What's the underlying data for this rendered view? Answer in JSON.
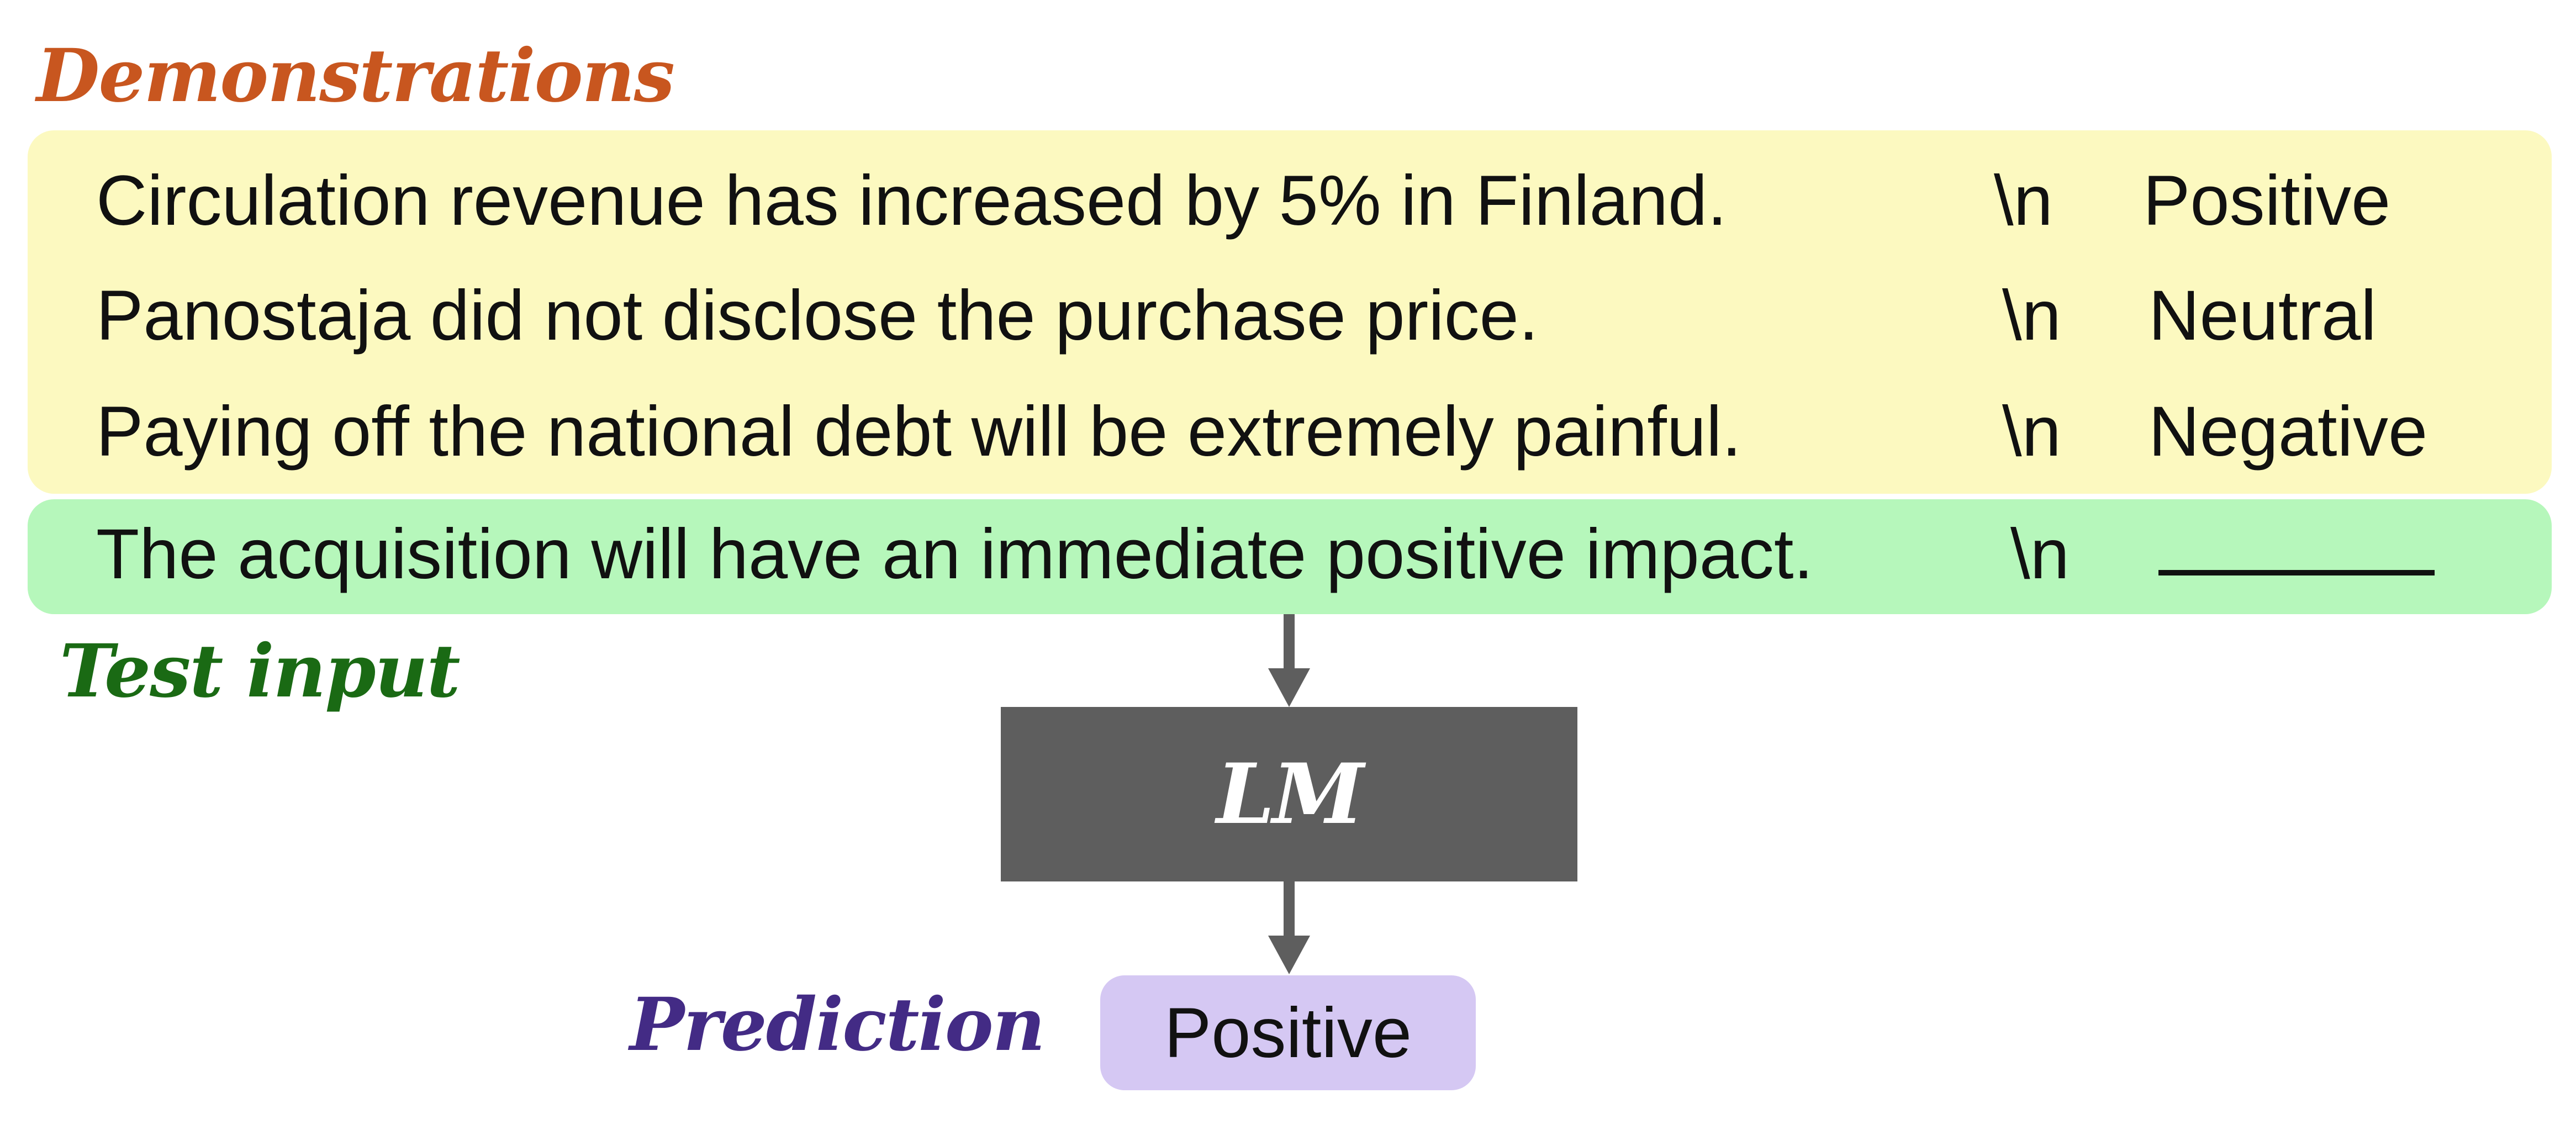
{
  "colors": {
    "demonstrations_heading": "#c8561f",
    "demonstrations_panel": "#fcf9c0",
    "test_heading": "#1a6a14",
    "test_panel": "#b6f7bb",
    "prediction_heading": "#432b85",
    "prediction_box": "#d5c8f3",
    "lm_box": "#5e5e5e",
    "arrow": "#5e5e5e"
  },
  "demonstrations": {
    "heading": "Demonstrations",
    "examples": [
      {
        "text": "Circulation revenue has increased by 5% in Finland.",
        "separator": "\\n",
        "label": "Positive"
      },
      {
        "text": "Panostaja did not disclose the purchase price.",
        "separator": "\\n",
        "label": "Neutral"
      },
      {
        "text": "Paying off the national debt will be extremely painful.",
        "separator": "\\n",
        "label": "Negative"
      }
    ]
  },
  "test_input": {
    "heading": "Test input",
    "text": "The acquisition will have an immediate positive impact.",
    "separator": "\\n"
  },
  "model": {
    "label": "LM"
  },
  "prediction": {
    "heading": "Prediction",
    "value": "Positive"
  },
  "icons": [
    "arrow-down-icon"
  ]
}
